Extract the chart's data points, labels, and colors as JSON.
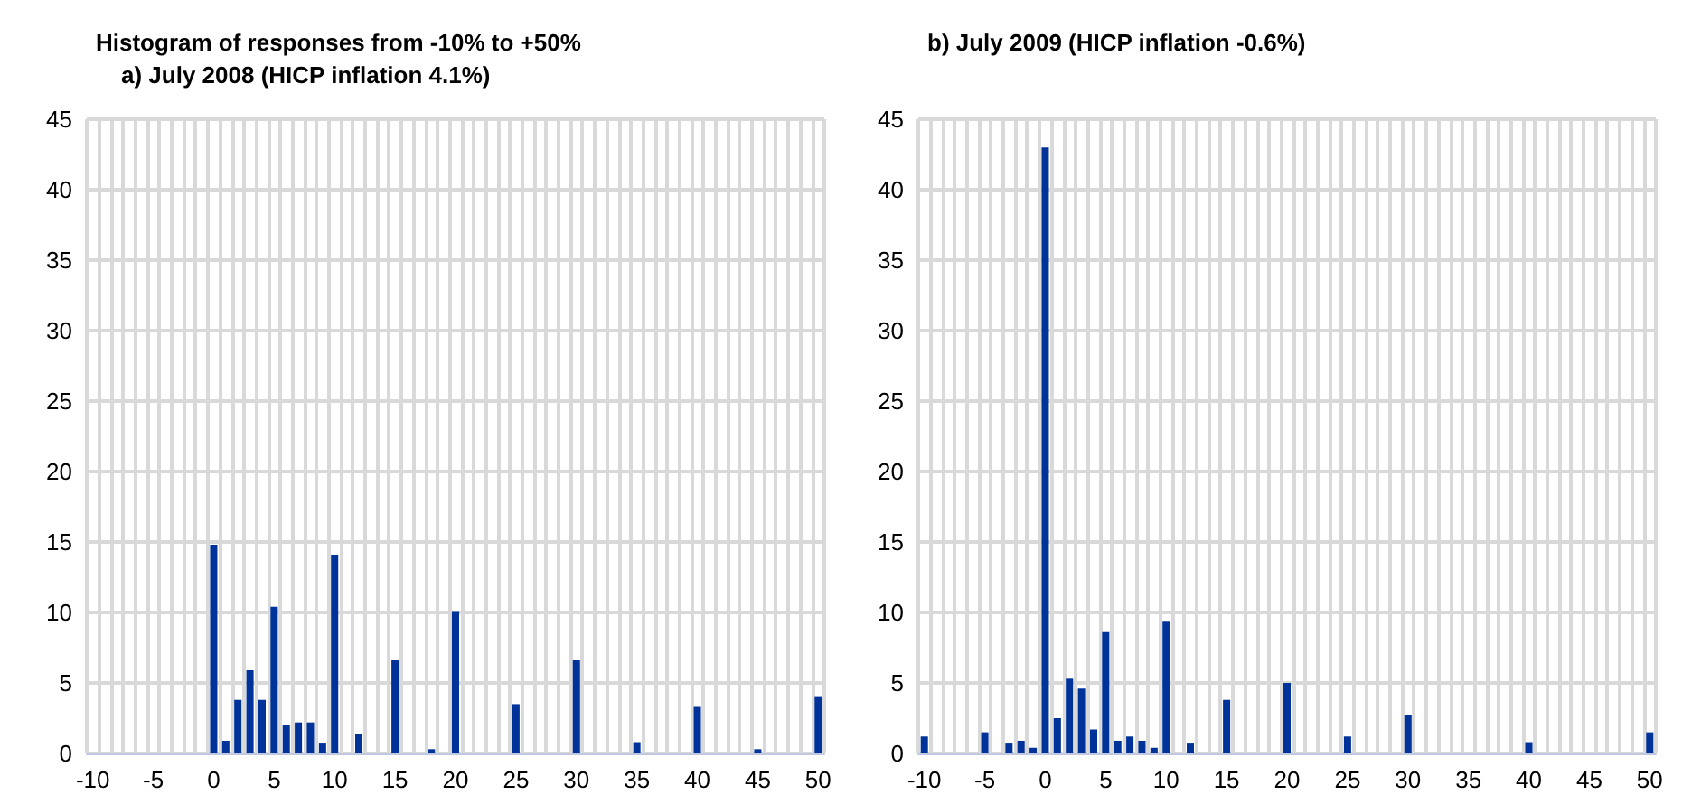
{
  "chart_data": [
    {
      "type": "bar",
      "title": "Histogram of responses from -10% to +50%",
      "subtitle": "a) July 2008 (HICP inflation 4.1%)",
      "categories": [
        "-10",
        null,
        null,
        null,
        null,
        "-5",
        null,
        null,
        null,
        null,
        "0",
        null,
        null,
        null,
        null,
        "5",
        null,
        null,
        null,
        null,
        "10",
        null,
        null,
        null,
        null,
        "15",
        null,
        null,
        null,
        null,
        "20",
        null,
        null,
        null,
        null,
        "25",
        null,
        null,
        null,
        null,
        "30",
        null,
        null,
        null,
        null,
        "35",
        null,
        null,
        null,
        null,
        "40",
        null,
        null,
        null,
        null,
        "45",
        null,
        null,
        null,
        null,
        "50"
      ],
      "values": [
        0,
        0,
        0,
        0,
        0,
        0,
        0,
        0,
        0,
        0,
        14.8,
        0.9,
        3.8,
        5.9,
        3.8,
        10.4,
        2.0,
        2.2,
        2.2,
        0.7,
        14.1,
        0,
        1.4,
        0,
        0,
        6.6,
        0,
        0,
        0.3,
        0,
        10.1,
        0,
        0,
        0,
        0,
        3.5,
        0,
        0,
        0,
        0,
        6.6,
        0,
        0,
        0,
        0,
        0.8,
        0,
        0,
        0,
        0,
        3.3,
        0,
        0,
        0,
        0,
        0.3,
        0,
        0,
        0,
        0,
        4.0
      ],
      "color": "#003399",
      "ylim": [
        0,
        45
      ],
      "yticks": [
        0,
        5,
        10,
        15,
        20,
        25,
        30,
        35,
        40,
        45
      ],
      "grid": true
    },
    {
      "type": "bar",
      "title": "b) July 2009 (HICP inflation -0.6%)",
      "categories": [
        "-10",
        null,
        null,
        null,
        null,
        "-5",
        null,
        null,
        null,
        null,
        "0",
        null,
        null,
        null,
        null,
        "5",
        null,
        null,
        null,
        null,
        "10",
        null,
        null,
        null,
        null,
        "15",
        null,
        null,
        null,
        null,
        "20",
        null,
        null,
        null,
        null,
        "25",
        null,
        null,
        null,
        null,
        "30",
        null,
        null,
        null,
        null,
        "35",
        null,
        null,
        null,
        null,
        "40",
        null,
        null,
        null,
        null,
        "45",
        null,
        null,
        null,
        null,
        "50"
      ],
      "values": [
        1.2,
        0,
        0,
        0,
        0,
        1.5,
        0,
        0.7,
        0.9,
        0.4,
        43,
        2.5,
        5.3,
        4.6,
        1.7,
        8.6,
        0.9,
        1.2,
        0.9,
        0.4,
        9.4,
        0,
        0.7,
        0,
        0,
        3.8,
        0,
        0,
        0,
        0,
        5.0,
        0,
        0,
        0,
        0,
        1.2,
        0,
        0,
        0,
        0,
        2.7,
        0,
        0,
        0,
        0,
        0,
        0,
        0,
        0,
        0,
        0.8,
        0,
        0,
        0,
        0,
        0,
        0,
        0,
        0,
        0,
        1.5
      ],
      "color": "#003399",
      "ylim": [
        0,
        45
      ],
      "yticks": [
        0,
        5,
        10,
        15,
        20,
        25,
        30,
        35,
        40,
        45
      ],
      "grid": true
    }
  ]
}
